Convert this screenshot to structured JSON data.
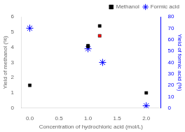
{
  "chart_data": {
    "type": "scatter",
    "xlabel": "Concentration of hydrochloric acid (mol/L)",
    "ylabel": "Yield of methanol (%)",
    "y2label": "Yield of formic acid (%)",
    "xlim": [
      -0.15,
      2.25
    ],
    "ylim": [
      0,
      6
    ],
    "y2lim": [
      0,
      80
    ],
    "xticks": [
      {
        "value": 0.0,
        "label": "0.0"
      },
      {
        "value": 0.5,
        "label": "0.5"
      },
      {
        "value": 1.0,
        "label": "1.0"
      },
      {
        "value": 1.5,
        "label": "1.5"
      },
      {
        "value": 2.0,
        "label": "2.0"
      }
    ],
    "yticks": [
      0,
      1,
      2,
      3,
      4,
      5,
      6
    ],
    "y2ticks": [
      0,
      10,
      20,
      30,
      40,
      50,
      60,
      70,
      80
    ],
    "grid": false,
    "legend": "upper right",
    "series": [
      {
        "name": "Methanol",
        "marker": "square",
        "color": "black",
        "x": [
          0.0,
          1.0,
          1.0,
          1.2,
          1.2,
          2.0
        ],
        "values": [
          1.5,
          4.1,
          4.05,
          5.4,
          4.75,
          1.0
        ],
        "colors": [
          "black",
          "black",
          "black",
          "black",
          "red",
          "black"
        ]
      },
      {
        "name": "Formic acid",
        "marker": "star",
        "color": "blue",
        "axis": "y2",
        "x": [
          0.0,
          1.0,
          1.25,
          2.0
        ],
        "values": [
          70.0,
          52.0,
          40.0,
          2.0
        ]
      }
    ]
  }
}
